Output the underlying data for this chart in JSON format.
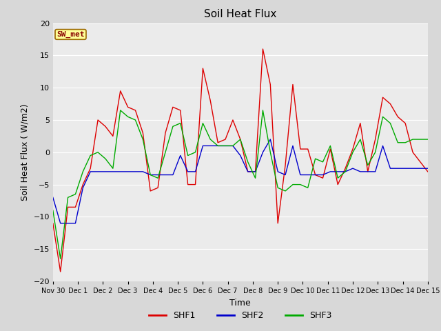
{
  "title": "Soil Heat Flux",
  "xlabel": "Time",
  "ylabel": "Soil Heat Flux ( W/m2)",
  "ylim": [
    -20,
    20
  ],
  "fig_bg_color": "#d8d8d8",
  "plot_bg_color": "#ebebeb",
  "grid_color": "white",
  "annotation_text": "SW_met",
  "annotation_bg": "#ffff99",
  "annotation_border": "#996600",
  "annotation_text_color": "#880000",
  "shf1_color": "#dd0000",
  "shf2_color": "#0000cc",
  "shf3_color": "#00aa00",
  "shf1": [
    -11.0,
    -18.5,
    -8.5,
    -8.5,
    -5.0,
    -2.5,
    5.0,
    4.0,
    2.5,
    9.5,
    7.0,
    6.5,
    3.0,
    -6.0,
    -5.5,
    3.0,
    7.0,
    6.5,
    -5.0,
    -5.0,
    13.0,
    8.0,
    1.5,
    2.0,
    5.0,
    2.0,
    -3.0,
    -3.0,
    16.0,
    10.5,
    -11.0,
    -2.0,
    10.5,
    0.5,
    0.5,
    -3.5,
    -4.0,
    0.5,
    -5.0,
    -2.5,
    0.5,
    4.5,
    -3.0,
    2.0,
    8.5,
    7.5,
    5.5,
    4.5,
    0.0,
    -1.5,
    -3.0
  ],
  "shf2": [
    -7.0,
    -11.0,
    -11.0,
    -11.0,
    -5.5,
    -3.0,
    -3.0,
    -3.0,
    -3.0,
    -3.0,
    -3.0,
    -3.0,
    -3.0,
    -3.5,
    -3.5,
    -3.5,
    -3.5,
    -0.5,
    -3.0,
    -3.0,
    1.0,
    1.0,
    1.0,
    1.0,
    1.0,
    -0.5,
    -3.0,
    -3.0,
    0.0,
    2.0,
    -3.0,
    -3.5,
    1.0,
    -3.5,
    -3.5,
    -3.5,
    -3.5,
    -3.0,
    -3.0,
    -3.0,
    -2.5,
    -3.0,
    -3.0,
    -3.0,
    1.0,
    -2.5,
    -2.5,
    -2.5,
    -2.5,
    -2.5,
    -2.5
  ],
  "shf3": [
    -9.0,
    -16.5,
    -7.0,
    -6.5,
    -3.0,
    -0.5,
    0.0,
    -1.0,
    -2.5,
    6.5,
    5.5,
    5.0,
    2.0,
    -3.5,
    -4.0,
    0.0,
    4.0,
    4.5,
    -0.5,
    0.0,
    4.5,
    2.0,
    1.0,
    1.0,
    1.0,
    2.0,
    -1.5,
    -4.0,
    6.5,
    0.0,
    -5.5,
    -6.0,
    -5.0,
    -5.0,
    -5.5,
    -1.0,
    -1.5,
    1.0,
    -4.0,
    -3.0,
    0.0,
    2.0,
    -2.0,
    0.0,
    5.5,
    4.5,
    1.5,
    1.5,
    2.0,
    2.0,
    2.0
  ],
  "xtick_labels": [
    "Nov 30",
    "Dec 1",
    "Dec 2",
    "Dec 3",
    "Dec 4",
    "Dec 5",
    "Dec 6",
    "Dec 7",
    "Dec 8",
    "Dec 9",
    "Dec 10",
    "Dec 11",
    "Dec 12",
    "Dec 13",
    "Dec 14",
    "Dec 15"
  ]
}
